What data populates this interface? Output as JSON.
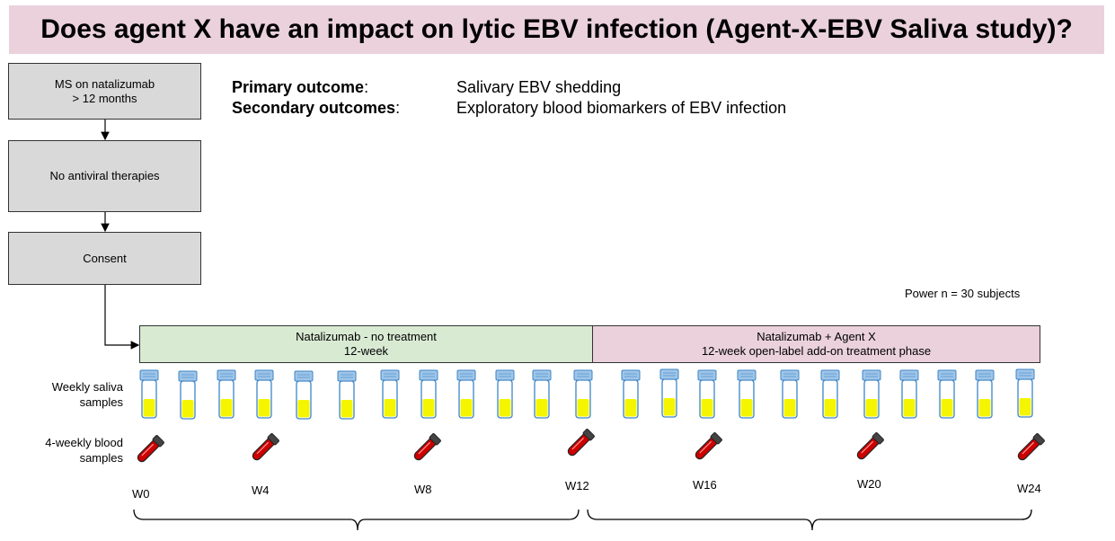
{
  "title": "Does agent X have an impact on lytic EBV infection (Agent-X-EBV Saliva study)?",
  "flow": {
    "box1": "MS on natalizumab\n> 12 months",
    "box2": "No antiviral therapies",
    "box3": "Consent"
  },
  "outcomes": {
    "primary_label": "Primary outcome",
    "primary_value": "Salivary EBV shedding",
    "secondary_label": "Secondary outcomes",
    "secondary_value": "Exploratory blood biomarkers of EBV infection"
  },
  "power": "Power n = 30 subjects",
  "phases": {
    "phase1": "Natalizumab - no treatment\n12-week",
    "phase2": "Natalizumab + Agent X\n12-week open-label add-on  treatment phase",
    "phase1_color": "#d9ead3",
    "phase2_color": "#ead1dc"
  },
  "rows": {
    "saliva": "Weekly saliva\nsamples",
    "blood": "4-weekly blood\nsamples"
  },
  "weeks": {
    "w0": "W0",
    "w4": "W4",
    "w8": "W8",
    "w12": "W12",
    "w16": "W16",
    "w20": "W20",
    "w24": "W24"
  },
  "colors": {
    "saliva_fill": "#f5f500",
    "tube_cap": "#9fc5e8",
    "blood": "#cc0000"
  },
  "icons": {
    "saliva_tube": "test-tube-icon",
    "blood_tube": "blood-tube-icon"
  }
}
